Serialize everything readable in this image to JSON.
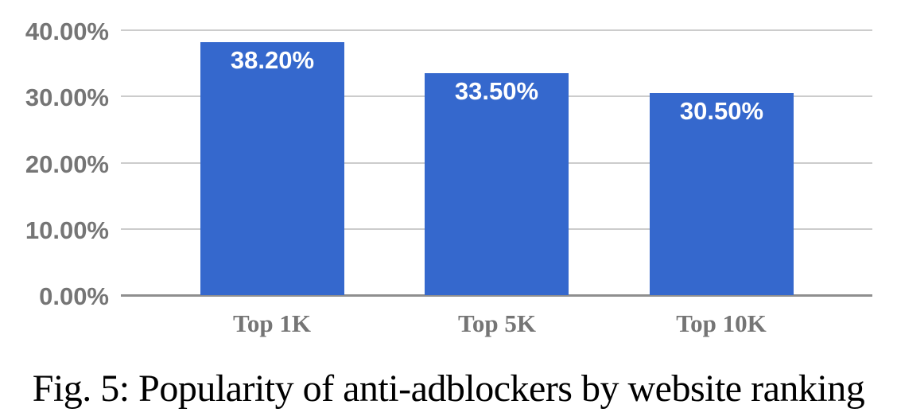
{
  "figure": {
    "caption": "Fig. 5: Popularity of anti-adblockers by website ranking"
  },
  "chart_data": {
    "type": "bar",
    "title": "",
    "xlabel": "",
    "ylabel": "",
    "categories": [
      "Top 1K",
      "Top 5K",
      "Top 10K"
    ],
    "values": [
      38.2,
      33.5,
      30.5
    ],
    "bar_labels": [
      "38.20%",
      "33.50%",
      "30.50%"
    ],
    "y_ticks": [
      0,
      10,
      20,
      30,
      40
    ],
    "y_tick_labels": [
      "0.00%",
      "10.00%",
      "20.00%",
      "30.00%",
      "40.00%"
    ],
    "ylim": [
      0,
      40
    ],
    "grid": true,
    "legend": "none",
    "colors": {
      "bar": "#3568cd",
      "bar_label_text": "#ffffff",
      "axis_text": "#757575",
      "gridline": "#cccccc",
      "baseline": "#8f8f8f"
    }
  }
}
